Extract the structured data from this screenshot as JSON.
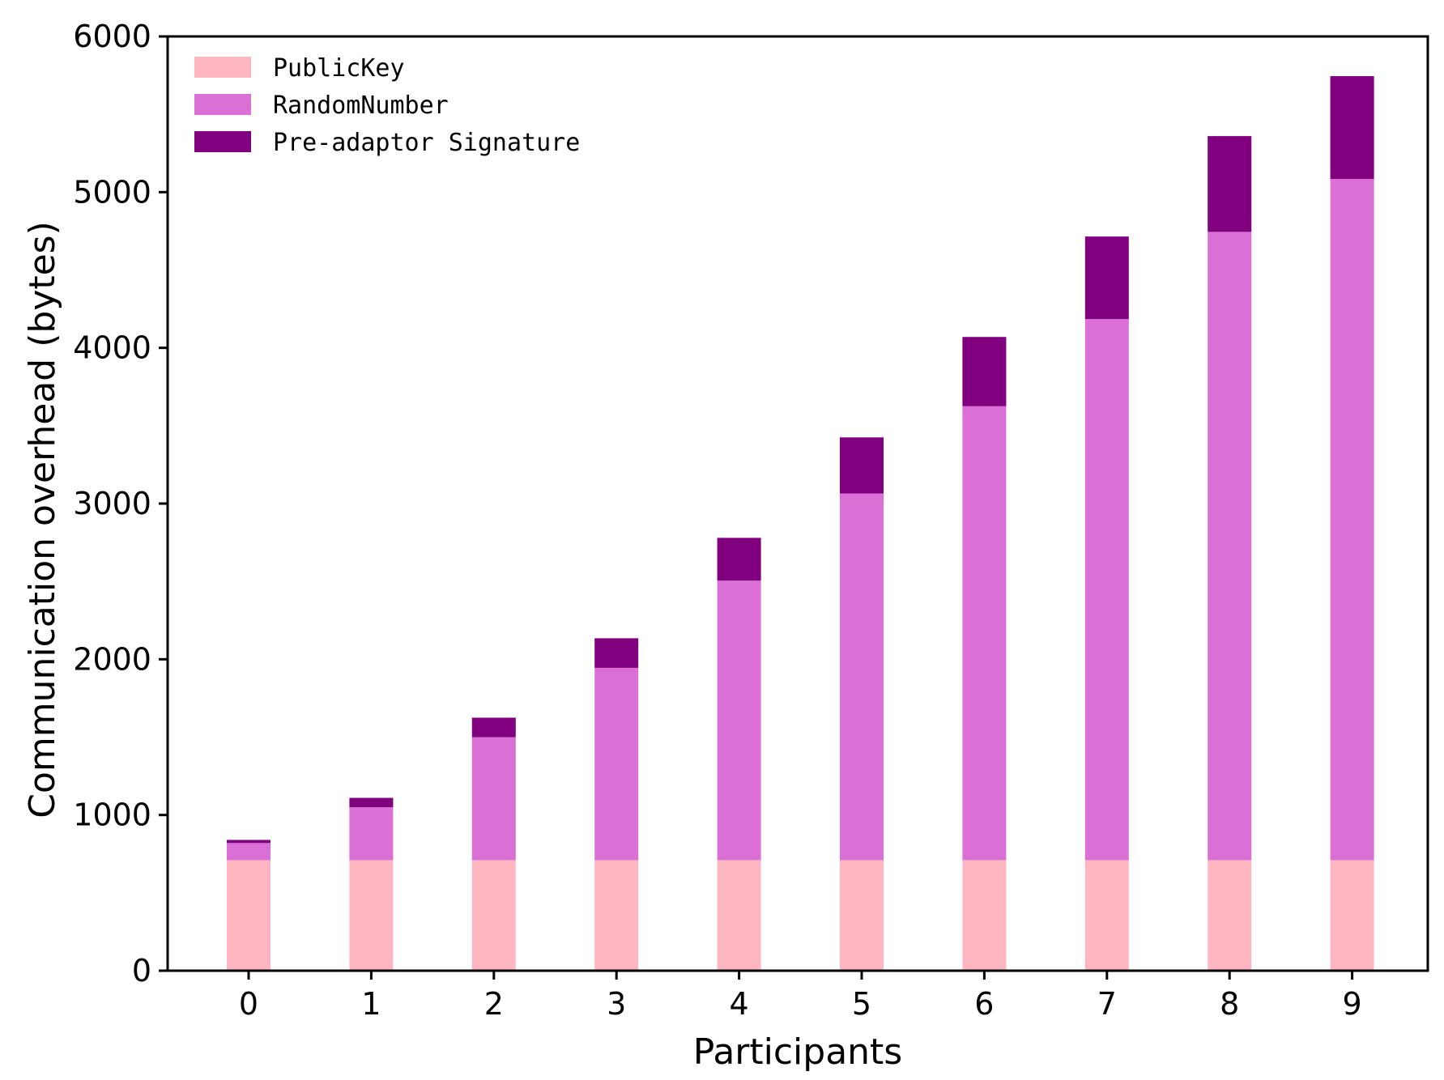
{
  "chart_data": {
    "type": "bar",
    "stacked": true,
    "title": "",
    "xlabel": "Participants",
    "ylabel": "Communication overhead (bytes)",
    "categories": [
      "0",
      "1",
      "2",
      "3",
      "4",
      "5",
      "6",
      "7",
      "8",
      "9"
    ],
    "ylim": [
      0,
      6000
    ],
    "yticks": [
      0,
      1000,
      2000,
      3000,
      4000,
      5000,
      6000
    ],
    "legend_position": "top-left",
    "series": [
      {
        "name": "PublicKey",
        "color": "#ffb6c1",
        "values": [
          710,
          710,
          710,
          710,
          710,
          710,
          710,
          710,
          710,
          710
        ]
      },
      {
        "name": "RandomNumber",
        "color": "#da70d6",
        "values": [
          110,
          340,
          790,
          1235,
          1795,
          2355,
          2915,
          3475,
          4035,
          4375
        ]
      },
      {
        "name": "Pre-adaptor Signature",
        "color": "#800080",
        "values": [
          20,
          60,
          125,
          190,
          275,
          360,
          445,
          530,
          615,
          660
        ]
      }
    ]
  }
}
